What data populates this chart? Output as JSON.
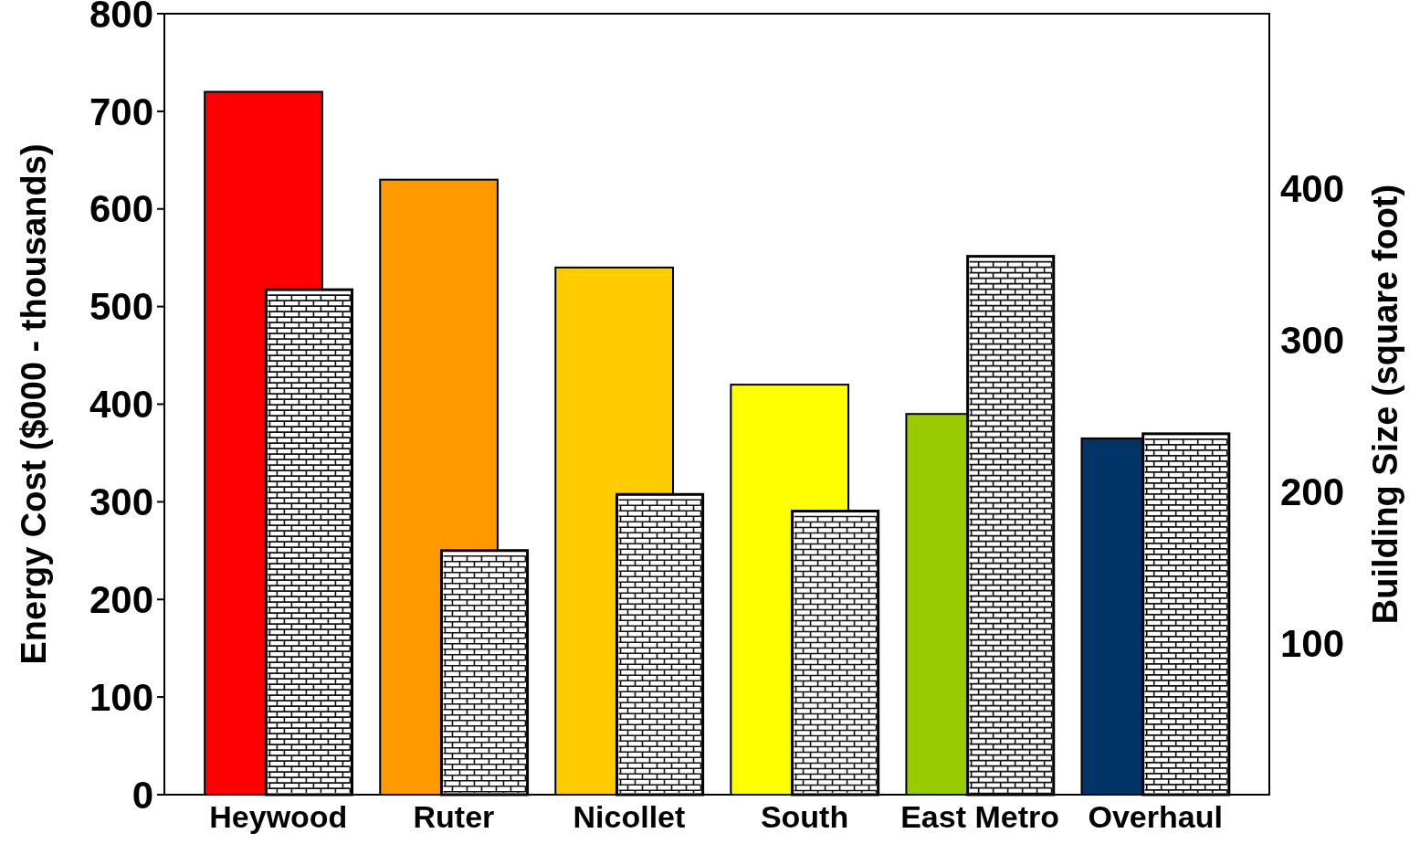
{
  "chart_data": {
    "type": "bar",
    "categories": [
      "Heywood",
      "Ruter",
      "Nicollet",
      "South",
      "East Metro",
      "Overhaul"
    ],
    "ylabel": "Energy Cost ($000 - thousands)",
    "y2label": "Building Size (square foot)",
    "ylim": [
      0,
      800
    ],
    "yticks": [
      0,
      100,
      200,
      300,
      400,
      500,
      600,
      700,
      800
    ],
    "y2lim": [
      0,
      515
    ],
    "y2ticks": [
      100,
      200,
      300,
      400
    ],
    "grid": false,
    "series": [
      {
        "colors": [
          "#ff0000",
          "#ff9900",
          "#ffcc00",
          "#ffff00",
          "#99cc00",
          "#003366"
        ],
        "values": [
          720,
          630,
          540,
          420,
          390,
          365
        ]
      },
      {
        "color": "#ffffff",
        "axis": "y2",
        "values": [
          333,
          161,
          198,
          187,
          355,
          238
        ]
      }
    ]
  }
}
